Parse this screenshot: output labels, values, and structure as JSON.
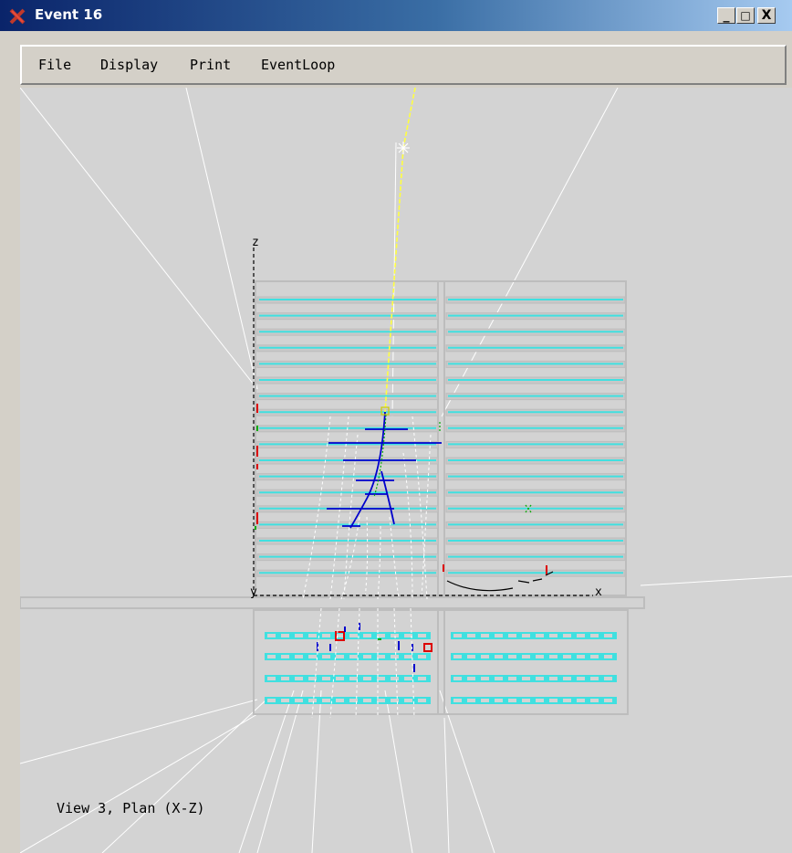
{
  "window": {
    "title": "Event 16",
    "controls": [
      "_",
      "□",
      "X"
    ]
  },
  "menubar": {
    "items": [
      "File",
      "Display",
      "Print",
      "EventLoop"
    ]
  },
  "canvas": {
    "view_label": "View 3, Plan (X-Z)",
    "axis_z": "z",
    "axis_y": "y",
    "axis_x": "x",
    "colors": {
      "background": "#d3d3d3",
      "detector_frame": "#bdbdbd",
      "strip": "#40e0e0",
      "track_yellow": "#ffff40",
      "track_blue": "#0000cc",
      "track_green": "#00aa00",
      "track_white": "#ffffff",
      "hit_red": "#dd0000"
    }
  }
}
